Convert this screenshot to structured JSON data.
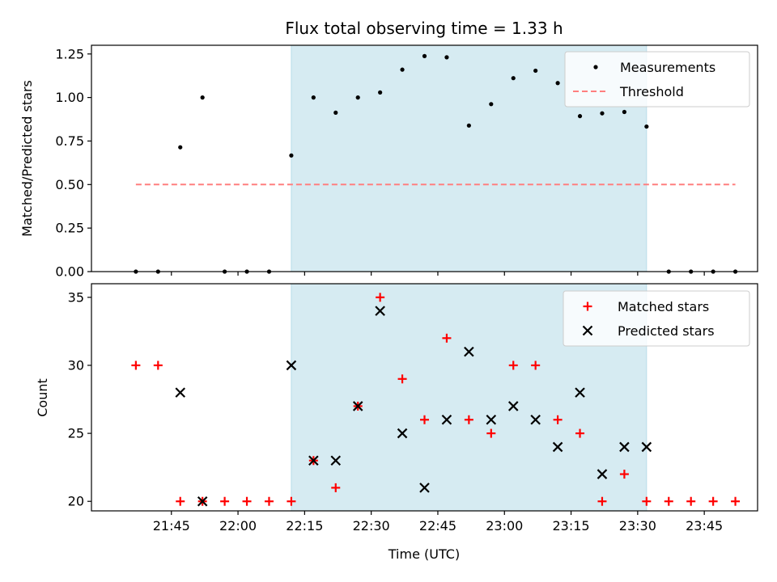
{
  "chart_data": [
    {
      "type": "scatter",
      "title": "Flux total observing time = 1.33 h",
      "xlabel": "",
      "ylabel": "Matched/Predicted stars",
      "ylim": [
        0,
        1.3
      ],
      "yticks": [
        0.0,
        0.25,
        0.5,
        0.75,
        1.0,
        1.25
      ],
      "ytick_labels": [
        "0.00",
        "0.25",
        "0.50",
        "0.75",
        "1.00",
        "1.25"
      ],
      "xlim": [
        "21:27",
        "23:57"
      ],
      "shaded_interval": [
        "22:12",
        "23:32"
      ],
      "shade_color": "#add8e6",
      "legend_position": "top-right",
      "series": [
        {
          "name": "Measurements",
          "marker": "dot",
          "color": "#000000",
          "x": [
            "21:37",
            "21:42",
            "21:47",
            "21:52",
            "21:57",
            "22:02",
            "22:07",
            "22:12",
            "22:17",
            "22:22",
            "22:27",
            "22:32",
            "22:37",
            "22:42",
            "22:47",
            "22:52",
            "22:57",
            "23:02",
            "23:07",
            "23:12",
            "23:17",
            "23:22",
            "23:27",
            "23:32",
            "23:37",
            "23:42",
            "23:47",
            "23:52"
          ],
          "y": [
            0,
            0,
            0.714,
            1.0,
            0,
            0,
            0,
            0.667,
            1.0,
            0.913,
            1.0,
            1.029,
            1.16,
            1.238,
            1.231,
            0.839,
            0.962,
            1.111,
            1.154,
            1.083,
            0.893,
            0.909,
            0.917,
            0.833,
            0,
            0,
            0,
            0
          ]
        },
        {
          "name": "Threshold",
          "marker": "dashed-line",
          "color": "#ff7f7f",
          "x": [
            "21:37",
            "23:52"
          ],
          "y": [
            0.5,
            0.5
          ]
        }
      ]
    },
    {
      "type": "scatter",
      "title": "",
      "xlabel": "Time (UTC)",
      "ylabel": "Count",
      "ylim": [
        19.3,
        36
      ],
      "yticks": [
        20,
        25,
        30,
        35
      ],
      "ytick_labels": [
        "20",
        "25",
        "30",
        "35"
      ],
      "xlim": [
        "21:27",
        "23:57"
      ],
      "xticks": [
        "21:45",
        "22:00",
        "22:15",
        "22:30",
        "22:45",
        "23:00",
        "23:15",
        "23:30",
        "23:45"
      ],
      "shaded_interval": [
        "22:12",
        "23:32"
      ],
      "shade_color": "#add8e6",
      "legend_position": "top-right",
      "series": [
        {
          "name": "Matched stars",
          "marker": "plus",
          "color": "#ff0000",
          "x": [
            "21:37",
            "21:42",
            "21:47",
            "21:52",
            "21:57",
            "22:02",
            "22:07",
            "22:12",
            "22:17",
            "22:22",
            "22:27",
            "22:32",
            "22:37",
            "22:42",
            "22:47",
            "22:52",
            "22:57",
            "23:02",
            "23:07",
            "23:12",
            "23:17",
            "23:22",
            "23:27",
            "23:32",
            "23:37",
            "23:42",
            "23:47",
            "23:52"
          ],
          "y": [
            30,
            30,
            20,
            20,
            20,
            20,
            20,
            20,
            23,
            21,
            27,
            35,
            29,
            26,
            32,
            26,
            25,
            30,
            30,
            26,
            25,
            20,
            22,
            20,
            20,
            20,
            20,
            20
          ]
        },
        {
          "name": "Predicted stars",
          "marker": "x",
          "color": "#000000",
          "x": [
            "21:47",
            "21:52",
            "22:12",
            "22:17",
            "22:22",
            "22:27",
            "22:32",
            "22:37",
            "22:42",
            "22:47",
            "22:52",
            "22:57",
            "23:02",
            "23:07",
            "23:12",
            "23:17",
            "23:22",
            "23:27",
            "23:32"
          ],
          "y": [
            28,
            20,
            30,
            23,
            23,
            27,
            34,
            25,
            21,
            26,
            31,
            26,
            27,
            26,
            24,
            28,
            22,
            24,
            24
          ]
        }
      ]
    }
  ]
}
